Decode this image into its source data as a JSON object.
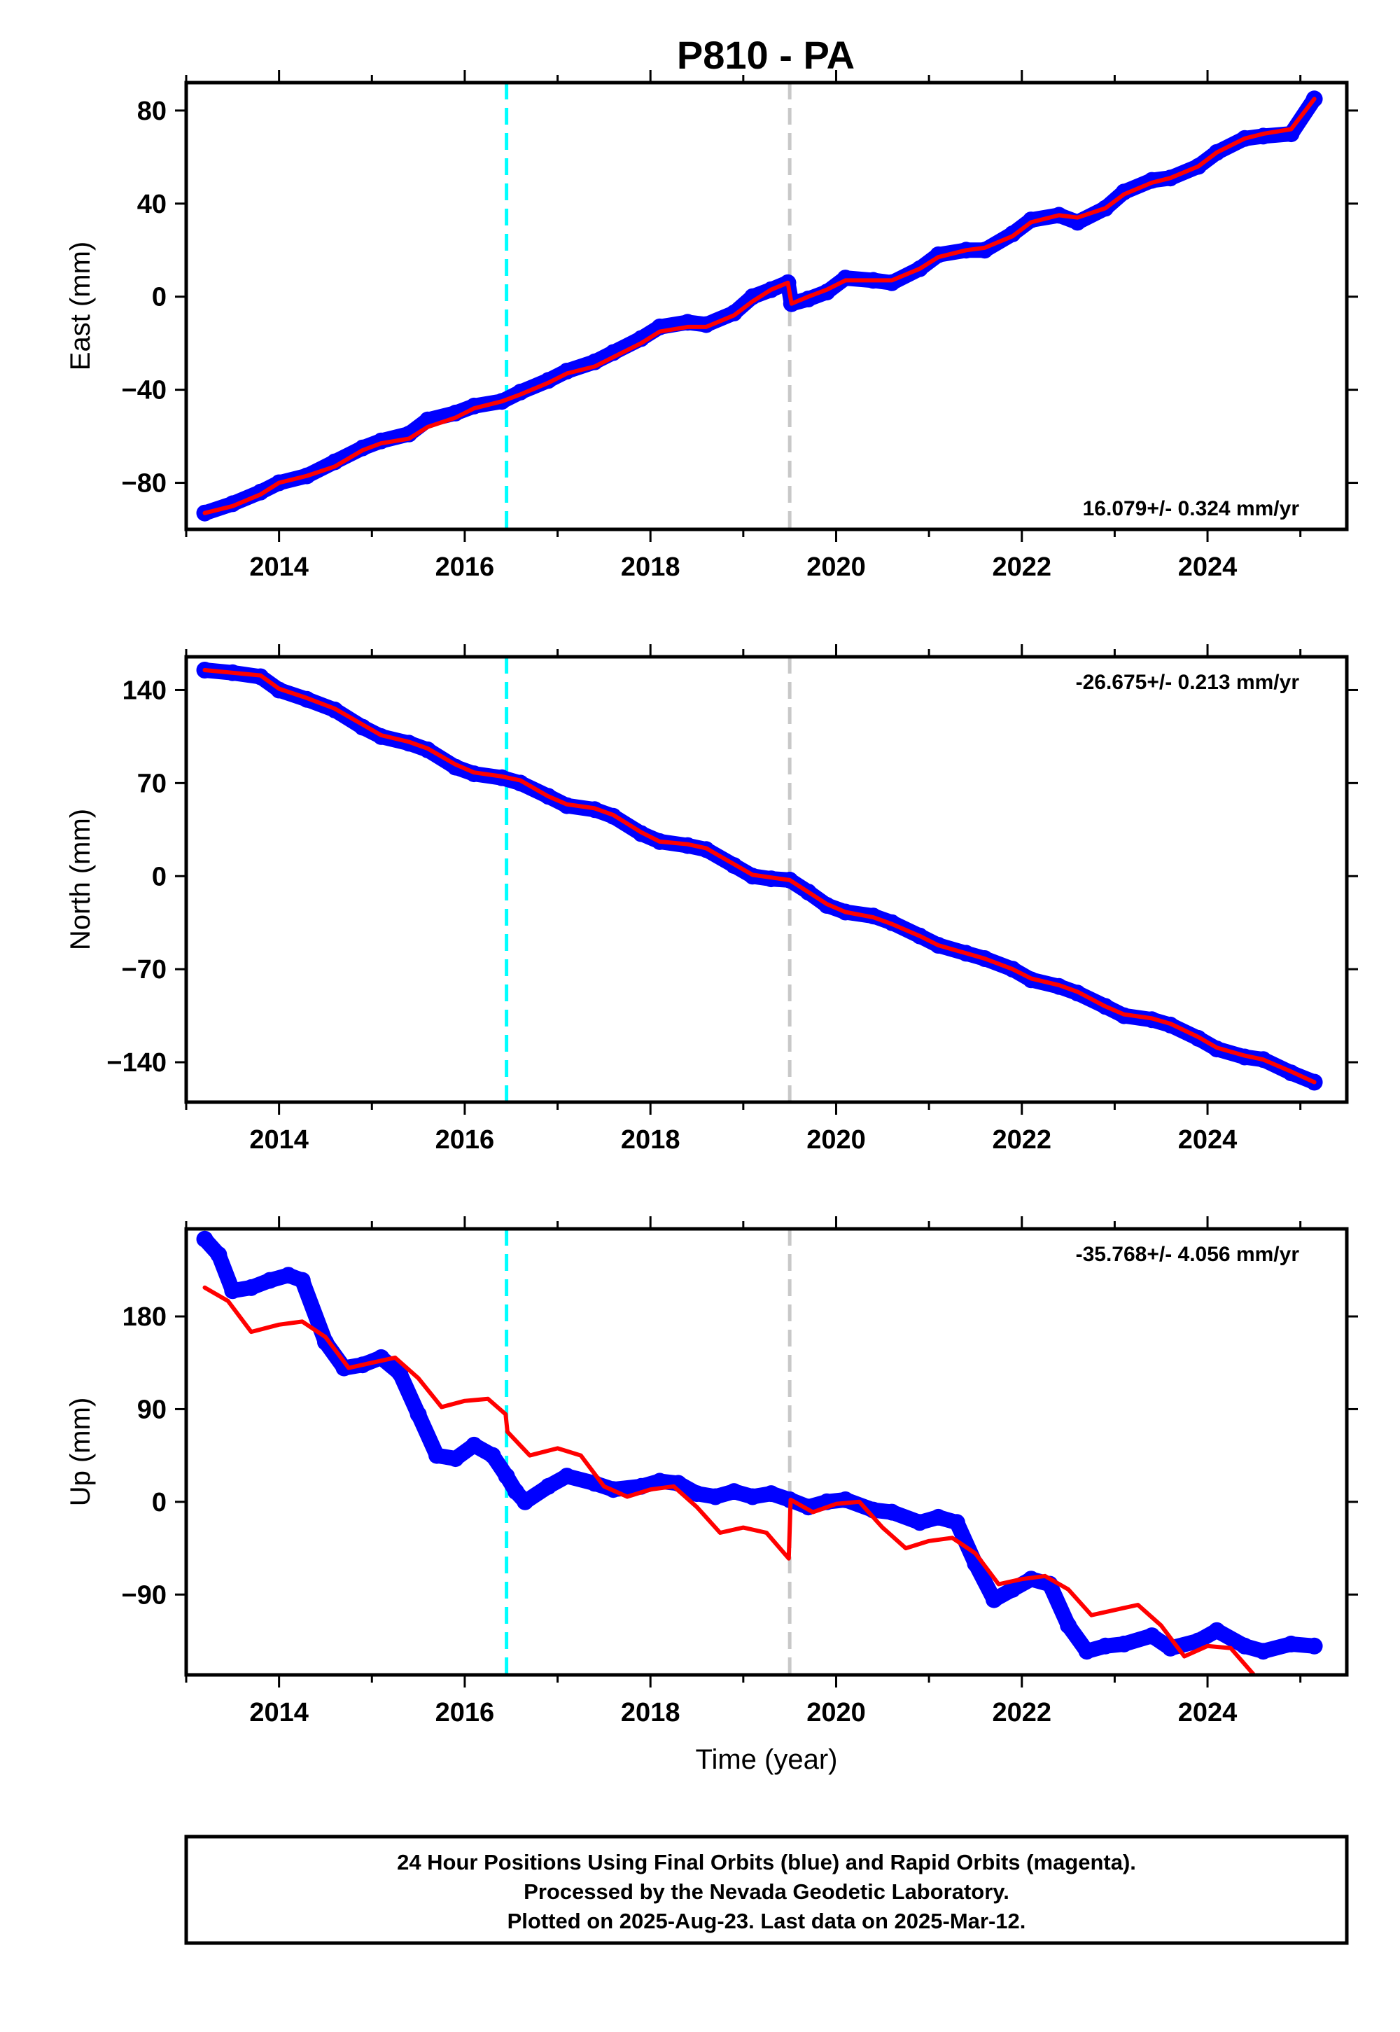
{
  "figure": {
    "title": "P810 - PA",
    "footer_lines": [
      "24 Hour Positions Using Final Orbits (blue) and Rapid Orbits (magenta).",
      "Processed by the Nevada Geodetic Laboratory.",
      "Plotted on 2025-Aug-23. Last data on 2025-Mar-12."
    ]
  },
  "colors": {
    "data": "#0000ff",
    "model": "#ff0000",
    "event_cyan": "#00ffff",
    "event_gray": "#c8c8c8",
    "frame": "#000000"
  },
  "chart_data": [
    {
      "type": "scatter",
      "ylabel": "East (mm)",
      "xlabel": "",
      "rate_label": "16.079+/- 0.324 mm/yr",
      "xlim": [
        2013.0,
        2025.5
      ],
      "ylim": [
        -100,
        92
      ],
      "yticks": [
        -80,
        -40,
        0,
        40,
        80
      ],
      "ytick_labels": [
        "−80",
        "−40",
        "0",
        "40",
        "80"
      ],
      "xticks": [
        2014,
        2016,
        2018,
        2020,
        2022,
        2024
      ],
      "xtick_labels": [
        "2014",
        "2016",
        "2018",
        "2020",
        "2022",
        "2024"
      ],
      "event_lines": [
        {
          "x": 2016.45,
          "color": "cyan"
        },
        {
          "x": 2019.5,
          "color": "gray"
        }
      ],
      "series": [
        {
          "kind": "points",
          "x": [
            2013.2,
            2013.5,
            2013.8,
            2014.0,
            2014.3,
            2014.6,
            2014.9,
            2015.1,
            2015.4,
            2015.6,
            2015.9,
            2016.1,
            2016.4,
            2016.6,
            2016.9,
            2017.1,
            2017.4,
            2017.6,
            2017.9,
            2018.1,
            2018.4,
            2018.6,
            2018.9,
            2019.1,
            2019.3,
            2019.48,
            2019.52,
            2019.7,
            2019.9,
            2020.1,
            2020.4,
            2020.6,
            2020.9,
            2021.1,
            2021.4,
            2021.6,
            2021.9,
            2022.1,
            2022.4,
            2022.6,
            2022.9,
            2023.1,
            2023.4,
            2023.6,
            2023.9,
            2024.1,
            2024.4,
            2024.6,
            2024.9,
            2025.15
          ],
          "y": [
            -93,
            -89,
            -84,
            -80,
            -77,
            -71,
            -65,
            -62,
            -59,
            -53,
            -50,
            -47,
            -45,
            -41,
            -36,
            -32,
            -28,
            -24,
            -18,
            -13,
            -11,
            -12,
            -7,
            0,
            3,
            6,
            -3,
            -1,
            2,
            8,
            7,
            6,
            12,
            18,
            20,
            20,
            27,
            33,
            35,
            32,
            38,
            45,
            50,
            51,
            56,
            62,
            68,
            69,
            70,
            85
          ]
        },
        {
          "kind": "line",
          "x": [
            2013.2,
            2013.5,
            2013.8,
            2014.0,
            2014.3,
            2014.6,
            2014.9,
            2015.1,
            2015.4,
            2015.6,
            2015.9,
            2016.1,
            2016.4,
            2016.6,
            2016.9,
            2017.1,
            2017.4,
            2017.6,
            2017.9,
            2018.1,
            2018.4,
            2018.6,
            2018.9,
            2019.1,
            2019.3,
            2019.48,
            2019.52,
            2019.7,
            2019.9,
            2020.1,
            2020.4,
            2020.6,
            2020.9,
            2021.1,
            2021.4,
            2021.6,
            2021.9,
            2022.1,
            2022.4,
            2022.6,
            2022.9,
            2023.1,
            2023.4,
            2023.6,
            2023.9,
            2024.1,
            2024.4,
            2024.6,
            2024.9,
            2025.15
          ],
          "y": [
            -93,
            -90,
            -85,
            -80,
            -77,
            -73,
            -66,
            -63,
            -61,
            -56,
            -52,
            -48,
            -45,
            -42,
            -37,
            -33,
            -30,
            -26,
            -20,
            -15,
            -13,
            -13,
            -8,
            -2,
            3,
            6,
            -3,
            0,
            3,
            7,
            7,
            7,
            12,
            17,
            20,
            21,
            26,
            32,
            35,
            34,
            38,
            44,
            49,
            51,
            56,
            62,
            68,
            70,
            72,
            85
          ]
        }
      ]
    },
    {
      "type": "scatter",
      "ylabel": "North (mm)",
      "xlabel": "",
      "rate_label": "-26.675+/- 0.213 mm/yr",
      "xlim": [
        2013.0,
        2025.5
      ],
      "ylim": [
        -170,
        165
      ],
      "yticks": [
        -140,
        -70,
        0,
        70,
        140
      ],
      "ytick_labels": [
        "−140",
        "−70",
        "0",
        "70",
        "140"
      ],
      "xticks": [
        2014,
        2016,
        2018,
        2020,
        2022,
        2024
      ],
      "xtick_labels": [
        "2014",
        "2016",
        "2018",
        "2020",
        "2022",
        "2024"
      ],
      "event_lines": [
        {
          "x": 2016.45,
          "color": "cyan"
        },
        {
          "x": 2019.5,
          "color": "gray"
        }
      ],
      "series": [
        {
          "kind": "points",
          "x": [
            2013.2,
            2013.5,
            2013.8,
            2014.0,
            2014.3,
            2014.6,
            2014.9,
            2015.1,
            2015.4,
            2015.6,
            2015.9,
            2016.1,
            2016.4,
            2016.6,
            2016.9,
            2017.1,
            2017.4,
            2017.6,
            2017.9,
            2018.1,
            2018.4,
            2018.6,
            2018.9,
            2019.1,
            2019.3,
            2019.5,
            2019.7,
            2019.9,
            2020.1,
            2020.4,
            2020.6,
            2020.9,
            2021.1,
            2021.4,
            2021.6,
            2021.9,
            2022.1,
            2022.4,
            2022.6,
            2022.9,
            2023.1,
            2023.4,
            2023.6,
            2023.9,
            2024.1,
            2024.4,
            2024.6,
            2024.9,
            2025.15
          ],
          "y": [
            155,
            153,
            150,
            140,
            133,
            125,
            112,
            105,
            100,
            95,
            82,
            77,
            74,
            70,
            60,
            53,
            50,
            45,
            32,
            26,
            23,
            20,
            8,
            0,
            -2,
            -3,
            -12,
            -22,
            -27,
            -30,
            -35,
            -45,
            -52,
            -58,
            -62,
            -70,
            -78,
            -83,
            -88,
            -98,
            -105,
            -108,
            -112,
            -122,
            -130,
            -136,
            -138,
            -148,
            -155
          ]
        },
        {
          "kind": "line",
          "x": [
            2013.2,
            2013.5,
            2013.8,
            2014.0,
            2014.3,
            2014.6,
            2014.9,
            2015.1,
            2015.4,
            2015.6,
            2015.9,
            2016.1,
            2016.4,
            2016.6,
            2016.9,
            2017.1,
            2017.4,
            2017.6,
            2017.9,
            2018.1,
            2018.4,
            2018.6,
            2018.9,
            2019.1,
            2019.3,
            2019.5,
            2019.7,
            2019.9,
            2020.1,
            2020.4,
            2020.6,
            2020.9,
            2021.1,
            2021.4,
            2021.6,
            2021.9,
            2022.1,
            2022.4,
            2022.6,
            2022.9,
            2023.1,
            2023.4,
            2023.6,
            2023.9,
            2024.1,
            2024.4,
            2024.6,
            2024.9,
            2025.15
          ],
          "y": [
            155,
            153,
            151,
            141,
            134,
            126,
            114,
            106,
            101,
            96,
            84,
            78,
            75,
            72,
            60,
            54,
            51,
            46,
            33,
            26,
            24,
            21,
            9,
            1,
            -1,
            -3,
            -12,
            -21,
            -27,
            -31,
            -36,
            -45,
            -52,
            -58,
            -62,
            -70,
            -77,
            -82,
            -87,
            -98,
            -104,
            -107,
            -111,
            -121,
            -129,
            -135,
            -138,
            -147,
            -155
          ]
        }
      ]
    },
    {
      "type": "scatter",
      "ylabel": "Up (mm)",
      "xlabel": "Time (year)",
      "rate_label": "-35.768+/- 4.056 mm/yr",
      "xlim": [
        2013.0,
        2025.5
      ],
      "ylim": [
        -168,
        265
      ],
      "yticks": [
        -90,
        0,
        90,
        180
      ],
      "ytick_labels": [
        "−90",
        "0",
        "90",
        "180"
      ],
      "xticks": [
        2014,
        2016,
        2018,
        2020,
        2022,
        2024
      ],
      "xtick_labels": [
        "2014",
        "2016",
        "2018",
        "2020",
        "2022",
        "2024"
      ],
      "event_lines": [
        {
          "x": 2016.45,
          "color": "cyan"
        },
        {
          "x": 2019.5,
          "color": "gray"
        }
      ],
      "series": [
        {
          "kind": "points",
          "x": [
            2013.2,
            2013.35,
            2013.5,
            2013.7,
            2013.9,
            2014.1,
            2014.25,
            2014.5,
            2014.7,
            2014.9,
            2015.1,
            2015.3,
            2015.5,
            2015.7,
            2015.9,
            2016.1,
            2016.3,
            2016.45,
            2016.55,
            2016.65,
            2016.9,
            2017.1,
            2017.4,
            2017.6,
            2017.9,
            2018.1,
            2018.3,
            2018.5,
            2018.7,
            2018.9,
            2019.1,
            2019.3,
            2019.5,
            2019.7,
            2019.9,
            2020.1,
            2020.4,
            2020.6,
            2020.9,
            2021.1,
            2021.3,
            2021.5,
            2021.7,
            2021.9,
            2022.1,
            2022.3,
            2022.5,
            2022.7,
            2022.9,
            2023.1,
            2023.4,
            2023.6,
            2023.9,
            2024.1,
            2024.4,
            2024.6,
            2024.9,
            2025.15
          ],
          "y": [
            255,
            240,
            205,
            208,
            215,
            220,
            215,
            155,
            130,
            133,
            140,
            125,
            85,
            45,
            42,
            55,
            45,
            25,
            10,
            0,
            15,
            25,
            18,
            12,
            15,
            20,
            18,
            8,
            5,
            10,
            5,
            8,
            2,
            -5,
            0,
            2,
            -8,
            -10,
            -20,
            -15,
            -20,
            -60,
            -95,
            -85,
            -75,
            -80,
            -120,
            -145,
            -140,
            -138,
            -130,
            -142,
            -135,
            -125,
            -140,
            -145,
            -138,
            -140
          ]
        },
        {
          "kind": "line",
          "x": [
            2013.2,
            2013.45,
            2013.7,
            2014.0,
            2014.25,
            2014.5,
            2014.75,
            2015.0,
            2015.25,
            2015.5,
            2015.75,
            2016.0,
            2016.25,
            2016.44,
            2016.46,
            2016.7,
            2017.0,
            2017.25,
            2017.5,
            2017.75,
            2018.0,
            2018.25,
            2018.5,
            2018.75,
            2019.0,
            2019.25,
            2019.49,
            2019.51,
            2019.75,
            2020.0,
            2020.25,
            2020.5,
            2020.75,
            2021.0,
            2021.25,
            2021.5,
            2021.75,
            2022.0,
            2022.25,
            2022.5,
            2022.75,
            2023.0,
            2023.25,
            2023.5,
            2023.75,
            2024.0,
            2024.25,
            2024.5
          ],
          "y": [
            208,
            195,
            165,
            172,
            175,
            160,
            130,
            135,
            140,
            120,
            92,
            98,
            100,
            85,
            68,
            45,
            52,
            45,
            15,
            5,
            12,
            15,
            -5,
            -30,
            -25,
            -30,
            -55,
            2,
            -10,
            -2,
            0,
            -25,
            -45,
            -38,
            -35,
            -50,
            -80,
            -75,
            -72,
            -85,
            -110,
            -105,
            -100,
            -120,
            -150,
            -140,
            -142,
            -168
          ]
        }
      ]
    }
  ]
}
